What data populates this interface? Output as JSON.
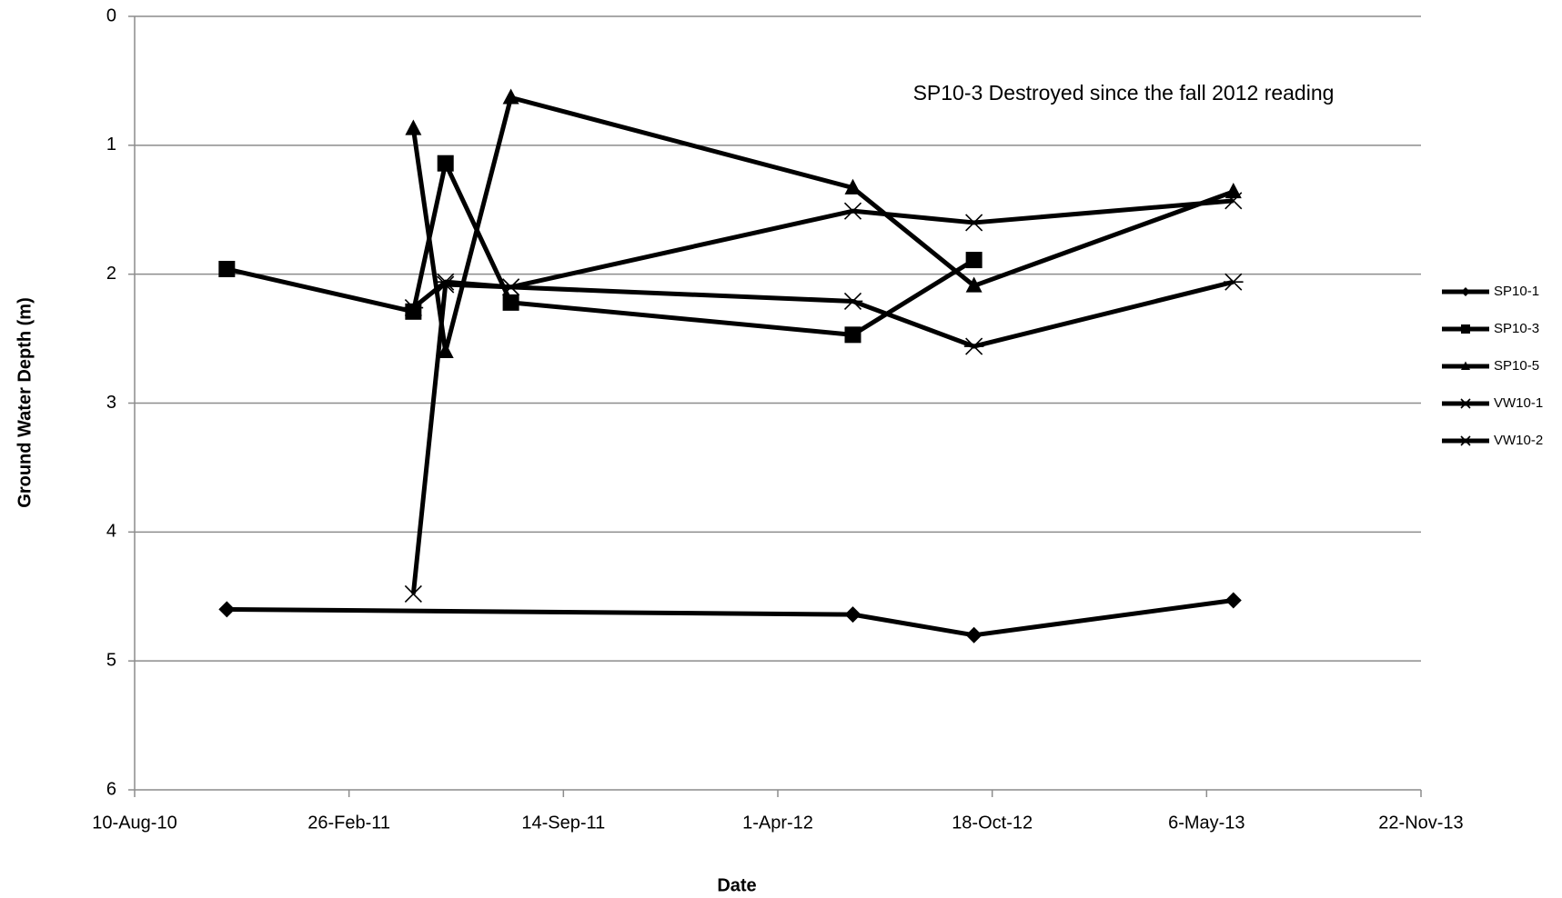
{
  "chart_data": {
    "type": "line",
    "annotation": "SP10-3 Destroyed since the fall 2012 reading",
    "xlabel": "Date",
    "ylabel": "Ground Water Depth (m)",
    "xlim": [
      "2010-08-10",
      "2013-11-22"
    ],
    "xticks": [
      {
        "value": "2010-08-10",
        "label": "10-Aug-10"
      },
      {
        "value": "2011-02-26",
        "label": "26-Feb-11"
      },
      {
        "value": "2011-09-14",
        "label": "14-Sep-11"
      },
      {
        "value": "2012-04-01",
        "label": "1-Apr-12"
      },
      {
        "value": "2012-10-18",
        "label": "18-Oct-12"
      },
      {
        "value": "2013-05-06",
        "label": "6-May-13"
      },
      {
        "value": "2013-11-22",
        "label": "22-Nov-13"
      }
    ],
    "ylim": [
      0,
      6
    ],
    "yticks": [
      0,
      1,
      2,
      3,
      4,
      5,
      6
    ],
    "y_reversed": true,
    "grid": true,
    "legend": "right",
    "series": [
      {
        "name": "SP10-1",
        "color": "#000000",
        "marker": "diamond",
        "x": [
          "2010-11-04",
          "2012-06-10",
          "2012-10-01",
          "2013-05-31"
        ],
        "values": [
          4.6,
          4.64,
          4.8,
          4.53
        ]
      },
      {
        "name": "SP10-3",
        "color": "#000000",
        "marker": "square",
        "x": [
          "2010-11-04",
          "2011-04-27",
          "2011-05-27",
          "2011-07-27",
          "2012-06-10",
          "2012-10-01"
        ],
        "values": [
          1.96,
          2.29,
          1.14,
          2.22,
          2.47,
          1.89
        ]
      },
      {
        "name": "SP10-5",
        "color": "#000000",
        "marker": "triangle",
        "x": [
          "2011-04-27",
          "2011-05-27",
          "2011-07-27",
          "2012-06-10",
          "2012-10-01",
          "2013-05-31"
        ],
        "values": [
          0.87,
          2.6,
          0.63,
          1.33,
          2.09,
          1.36
        ]
      },
      {
        "name": "VW10-1",
        "color": "#000000",
        "marker": "x",
        "x": [
          "2011-04-27",
          "2011-05-27",
          "2011-07-27",
          "2012-06-10",
          "2012-10-01",
          "2013-05-31"
        ],
        "values": [
          4.48,
          2.08,
          2.1,
          1.51,
          1.6,
          1.43
        ]
      },
      {
        "name": "VW10-2",
        "color": "#000000",
        "marker": "star",
        "x": [
          "2011-04-27",
          "2011-05-27",
          "2011-07-27",
          "2012-06-10",
          "2012-10-01",
          "2013-05-31"
        ],
        "values": [
          2.26,
          2.06,
          2.1,
          2.21,
          2.56,
          2.06
        ]
      }
    ]
  }
}
